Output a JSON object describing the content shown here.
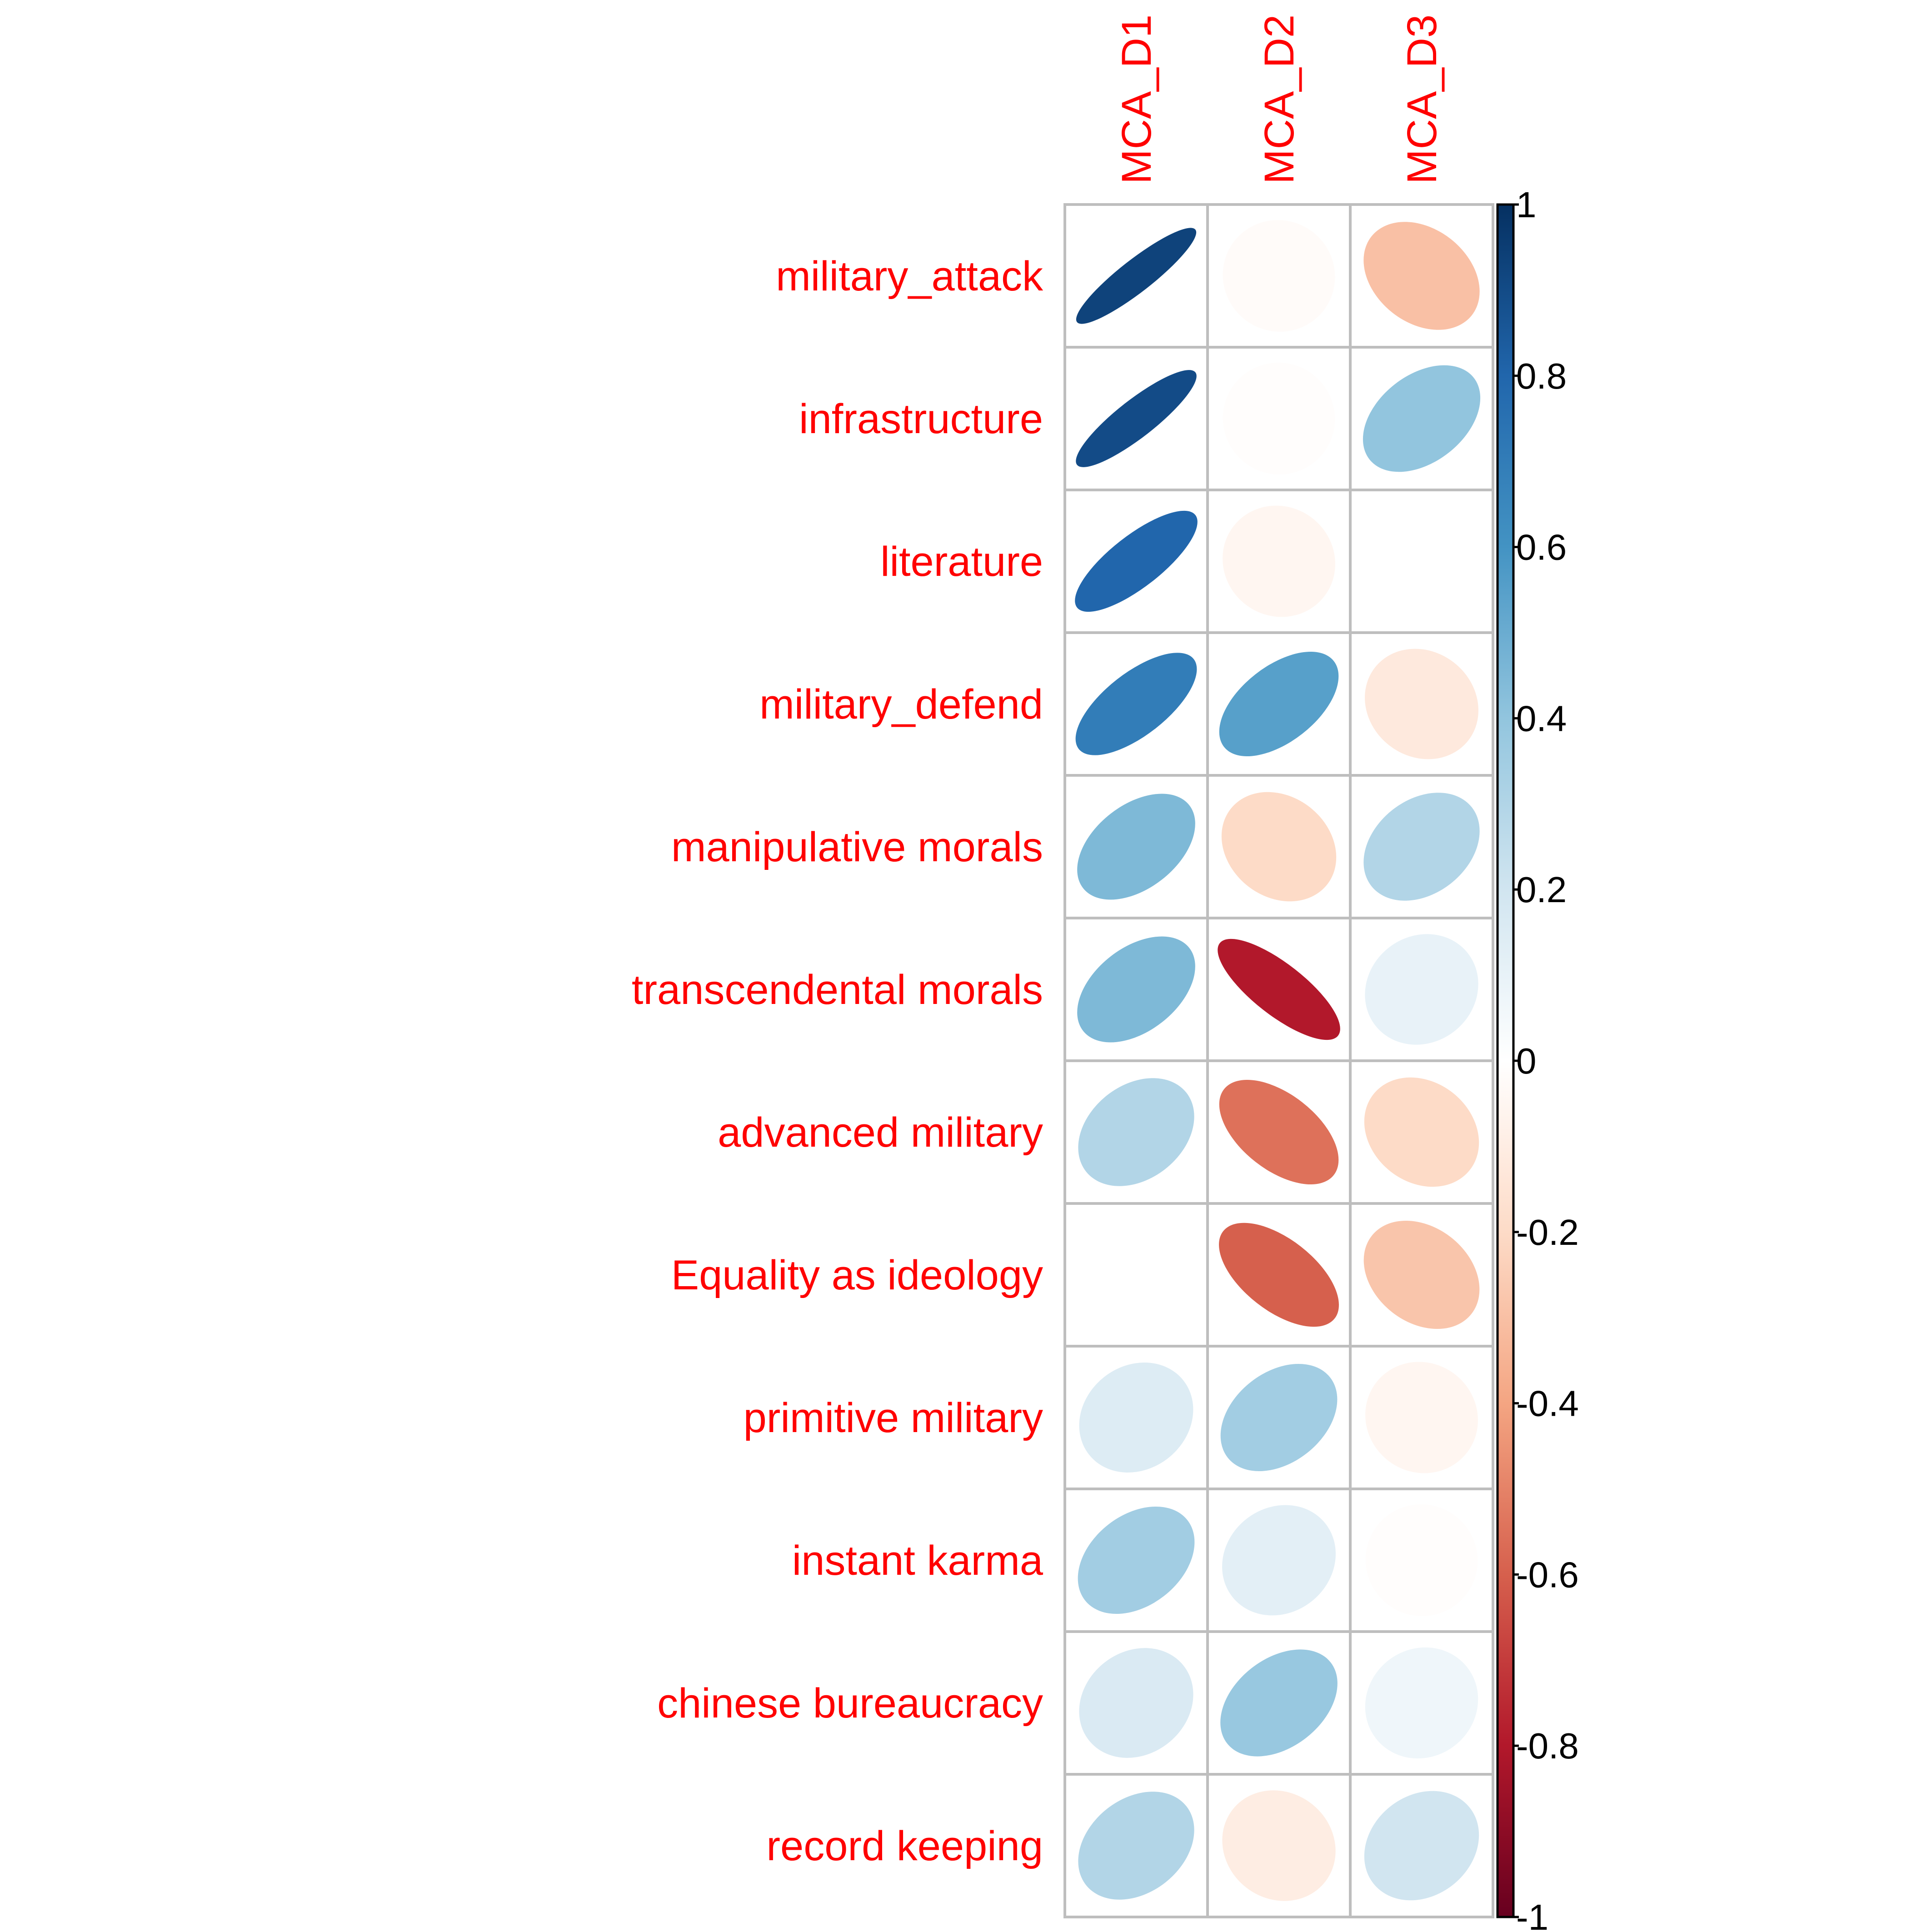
{
  "chart_data": {
    "type": "heatmap",
    "method": "ellipse",
    "columns": [
      "MCA_D1",
      "MCA_D2",
      "MCA_D3"
    ],
    "rows": [
      "military_attack",
      "infrastructure",
      "literature",
      "military_defend",
      "manipulative morals",
      "transcendental morals",
      "advanced military",
      "Equality as ideology",
      "primitive military",
      "instant karma",
      "chinese bureaucracy",
      "record keeping"
    ],
    "values": [
      [
        0.93,
        -0.02,
        -0.3
      ],
      [
        0.9,
        -0.01,
        0.4
      ],
      [
        0.8,
        -0.05,
        0.0
      ],
      [
        0.7,
        0.55,
        -0.12
      ],
      [
        0.45,
        -0.2,
        0.3
      ],
      [
        0.45,
        -0.8,
        0.1
      ],
      [
        0.3,
        -0.55,
        -0.2
      ],
      [
        0.0,
        -0.6,
        -0.28
      ],
      [
        0.15,
        0.35,
        -0.05
      ],
      [
        0.35,
        0.12,
        -0.01
      ],
      [
        0.16,
        0.38,
        0.07
      ],
      [
        0.3,
        -0.1,
        0.2
      ]
    ],
    "colorbar": {
      "ticks": [
        "1",
        "0.8",
        "0.6",
        "0.4",
        "0.2",
        "0",
        "-0.2",
        "-0.4",
        "-0.6",
        "-0.8",
        "-1"
      ],
      "tick_values": [
        1,
        0.8,
        0.6,
        0.4,
        0.2,
        0,
        -0.2,
        -0.4,
        -0.6,
        -0.8,
        -1
      ],
      "range": [
        -1,
        1
      ],
      "palette": [
        "#67001F",
        "#B2182B",
        "#D6604D",
        "#F4A582",
        "#FDDBC7",
        "#FFFFFF",
        "#D1E5F0",
        "#92C5DE",
        "#4393C3",
        "#2166AC",
        "#053061"
      ]
    },
    "label_color": "#FF0000",
    "grid_color": "#BEBEBE"
  }
}
